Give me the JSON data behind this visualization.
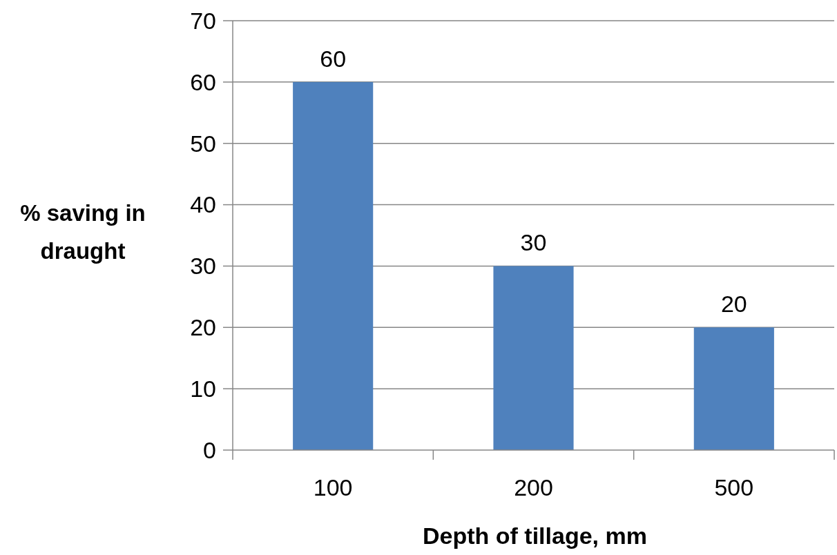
{
  "chart_data": {
    "type": "bar",
    "xlabel": "Depth of tillage, mm",
    "ylabel": "% saving in draught",
    "categories": [
      "100",
      "200",
      "500"
    ],
    "values": [
      60,
      30,
      20
    ],
    "color": "#4f81bd",
    "ylim": [
      0,
      70
    ],
    "yticks": [
      0,
      10,
      20,
      30,
      40,
      50,
      60,
      70
    ],
    "grid": "y",
    "data_labels": true
  }
}
